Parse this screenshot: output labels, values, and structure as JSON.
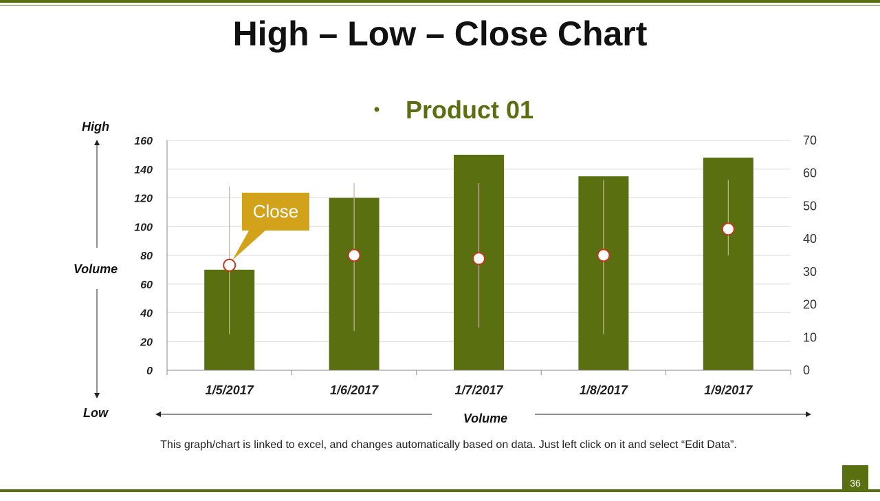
{
  "title": "High – Low – Close Chart",
  "footnote": "This graph/chart is linked to excel, and changes automatically based on data. Just left click on it and select “Edit Data”.",
  "page_number": "36",
  "colors": {
    "accent": "#5a7010",
    "callout": "#d2a21b",
    "close_marker_border": "#c0391b"
  },
  "chart_data": {
    "type": "bar",
    "legend": "Product 01",
    "categories": [
      "1/5/2017",
      "1/6/2017",
      "1/7/2017",
      "1/8/2017",
      "1/9/2017"
    ],
    "volume": [
      70,
      120,
      150,
      135,
      148
    ],
    "high": [
      56,
      57,
      57,
      58,
      58
    ],
    "low": [
      11,
      12,
      13,
      11,
      35
    ],
    "close": [
      32,
      35,
      34,
      35,
      43
    ],
    "left_axis": {
      "ylim": [
        0,
        160
      ],
      "ticks": [
        "0",
        "20",
        "40",
        "60",
        "80",
        "100",
        "120",
        "140",
        "160"
      ]
    },
    "right_axis": {
      "ylim": [
        0,
        70
      ],
      "ticks": [
        "0",
        "10",
        "20",
        "30",
        "40",
        "50",
        "60",
        "70"
      ]
    },
    "labels": {
      "high": "High",
      "low": "Low",
      "y_volume": "Volume",
      "x_volume": "Volume"
    },
    "callout": "Close",
    "grid": true
  }
}
